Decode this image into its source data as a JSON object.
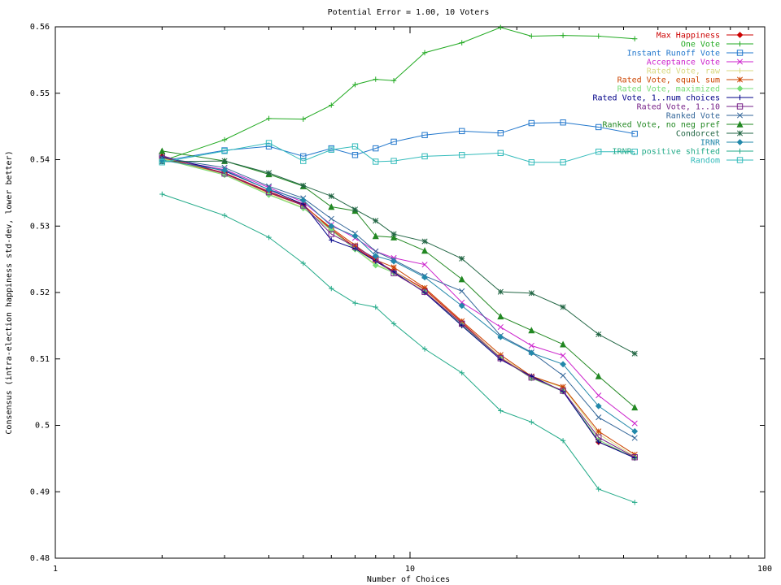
{
  "chart_data": {
    "type": "line",
    "title": "Potential Error = 1.00, 10 Voters",
    "xlabel": "Number of Choices",
    "ylabel": "Consensus (intra-election happiness std-dev, lower better)",
    "x_scale": "log",
    "xlim": [
      1,
      100
    ],
    "ylim": [
      0.48,
      0.56
    ],
    "x_ticks": [
      1,
      10,
      100
    ],
    "x_tick_labels": [
      "1",
      "10",
      "100"
    ],
    "y_ticks": [
      0.48,
      0.49,
      0.5,
      0.51,
      0.52,
      0.53,
      0.54,
      0.55,
      0.56
    ],
    "y_tick_labels": [
      "0.48",
      "0.49",
      "0.5",
      "0.51",
      "0.52",
      "0.53",
      "0.54",
      "0.55",
      "0.56"
    ],
    "grid": false,
    "legend_position": "top-right",
    "x": [
      2,
      3,
      4,
      5,
      6,
      7,
      8,
      9,
      11,
      14,
      18,
      22,
      27,
      34,
      43
    ],
    "series": [
      {
        "name": "Max Happiness",
        "color": "#cc0000",
        "marker": "diamond",
        "values": [
          0.5405,
          0.538,
          0.5352,
          0.5332,
          0.5295,
          0.5268,
          0.5248,
          0.5232,
          0.5205,
          0.5155,
          0.5102,
          0.5072,
          0.5052,
          0.4975,
          0.4952
        ]
      },
      {
        "name": "One Vote",
        "color": "#22aa22",
        "marker": "plus",
        "values": [
          0.5398,
          0.543,
          0.5462,
          0.5461,
          0.5482,
          0.5513,
          0.5521,
          0.5519,
          0.5561,
          0.5576,
          0.5599,
          0.5586,
          0.5587,
          0.5586,
          0.5582
        ]
      },
      {
        "name": "Instant Runoff Vote",
        "color": "#2277cc",
        "marker": "square",
        "values": [
          0.5398,
          0.5414,
          0.542,
          0.5405,
          0.5417,
          0.5407,
          0.5417,
          0.5427,
          0.5437,
          0.5443,
          0.544,
          0.5455,
          0.5456,
          0.5449,
          0.5439
        ]
      },
      {
        "name": "Acceptance Vote",
        "color": "#cc22cc",
        "marker": "x",
        "values": [
          0.5402,
          0.5385,
          0.5358,
          0.5336,
          0.5302,
          0.5282,
          0.5262,
          0.5252,
          0.5242,
          0.5185,
          0.5148,
          0.512,
          0.5105,
          0.5045,
          0.5003
        ]
      },
      {
        "name": "Rated Vote, raw",
        "color": "#d8d880",
        "marker": "plus",
        "values": [
          0.5402,
          0.5378,
          0.5348,
          0.5328,
          0.5293,
          0.5267,
          0.5242,
          0.5232,
          0.5203,
          0.5153,
          0.5103,
          0.5073,
          0.5057,
          0.4987,
          0.4953
        ]
      },
      {
        "name": "Rated Vote, equal sum",
        "color": "#cc4400",
        "marker": "star",
        "values": [
          0.5403,
          0.5379,
          0.535,
          0.5331,
          0.5297,
          0.5271,
          0.5249,
          0.5238,
          0.5207,
          0.5157,
          0.5106,
          0.5074,
          0.5058,
          0.4991,
          0.4956
        ]
      },
      {
        "name": "Rated Vote, maximized",
        "color": "#77dd77",
        "marker": "diamond",
        "values": [
          0.5401,
          0.5377,
          0.5347,
          0.5327,
          0.5294,
          0.5265,
          0.5241,
          0.523,
          0.5201,
          0.5151,
          0.5101,
          0.5071,
          0.5051,
          0.4978,
          0.4951
        ]
      },
      {
        "name": "Rated Vote, 1..num choices",
        "color": "#000088",
        "marker": "plus",
        "values": [
          0.5404,
          0.5383,
          0.5355,
          0.5333,
          0.5279,
          0.5266,
          0.5247,
          0.5231,
          0.52,
          0.515,
          0.5099,
          0.5074,
          0.5051,
          0.4975,
          0.4951
        ]
      },
      {
        "name": "Rated Vote, 1..10",
        "color": "#772288",
        "marker": "square",
        "values": [
          0.5406,
          0.5379,
          0.5351,
          0.5331,
          0.5288,
          0.5269,
          0.5251,
          0.5229,
          0.5201,
          0.5153,
          0.5101,
          0.5072,
          0.5052,
          0.4982,
          0.4952
        ]
      },
      {
        "name": "Ranked Vote",
        "color": "#336699",
        "marker": "x",
        "values": [
          0.5403,
          0.5388,
          0.536,
          0.5342,
          0.5311,
          0.5289,
          0.5262,
          0.5249,
          0.5225,
          0.5202,
          0.5135,
          0.511,
          0.5075,
          0.5012,
          0.4981
        ]
      },
      {
        "name": "Ranked Vote, no neg pref",
        "color": "#228822",
        "marker": "triangle",
        "values": [
          0.5413,
          0.5398,
          0.5378,
          0.536,
          0.5329,
          0.5323,
          0.5285,
          0.5283,
          0.5263,
          0.522,
          0.5164,
          0.5143,
          0.5122,
          0.5074,
          0.5027
        ]
      },
      {
        "name": "Condorcet",
        "color": "#226644",
        "marker": "star",
        "values": [
          0.5397,
          0.5398,
          0.538,
          0.5361,
          0.5345,
          0.5325,
          0.5308,
          0.5288,
          0.5277,
          0.5251,
          0.5201,
          0.5199,
          0.5178,
          0.5137,
          0.5108
        ]
      },
      {
        "name": "IRNR",
        "color": "#2288aa",
        "marker": "diamond",
        "values": [
          0.5399,
          0.5384,
          0.5355,
          0.5339,
          0.53,
          0.5285,
          0.5255,
          0.5247,
          0.5223,
          0.518,
          0.5133,
          0.5109,
          0.5092,
          0.5029,
          0.4991
        ]
      },
      {
        "name": "IRNR, positive shifted",
        "color": "#22aa88",
        "marker": "plus",
        "values": [
          0.5348,
          0.5316,
          0.5283,
          0.5244,
          0.5206,
          0.5184,
          0.5178,
          0.5153,
          0.5115,
          0.5079,
          0.5022,
          0.5005,
          0.4977,
          0.4904,
          0.4884
        ]
      },
      {
        "name": "Random",
        "color": "#33bbbb",
        "marker": "square",
        "values": [
          0.5396,
          0.5413,
          0.5425,
          0.5398,
          0.5415,
          0.542,
          0.5397,
          0.5398,
          0.5405,
          0.5407,
          0.541,
          0.5396,
          0.5396,
          0.5412,
          0.5412
        ]
      }
    ]
  }
}
